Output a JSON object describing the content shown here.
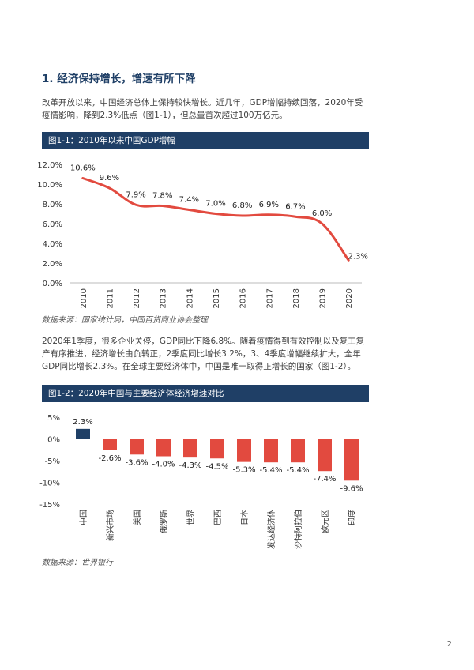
{
  "section": {
    "heading": "1. 经济保持增长，增速有所下降",
    "paragraph1_line1": "改革开放以来，中国经济总体上保持较快增长。近几年，GDP增幅持续回落，2020年受",
    "paragraph1_line2": "疫情影响，降到2.3%低点（图1-1），但总量首次超过100万亿元。",
    "paragraph2_line1": "2020年1季度，很多企业关停，GDP同比下降6.8%。随着疫情得到有效控制以及复工复",
    "paragraph2_line2": "产有序推进，经济增长由负转正，2季度同比增长3.2%，3、4季度增幅继续扩大，全年",
    "paragraph2_line3": "GDP同比增长2.3%。在全球主要经济体中，中国是唯一取得正增长的国家（图1-2）。"
  },
  "figure1": {
    "title": "图1-1：2010年以来中国GDP增幅",
    "source": "数据来源：国家统计局，中国百货商业协会整理"
  },
  "figure2": {
    "title": "图1-2：2020年中国与主要经济体经济增速对比",
    "source": "数据来源：世界银行"
  },
  "page_number": "2",
  "chart_data": [
    {
      "type": "line",
      "title": "图1-1：2010年以来中国GDP增幅",
      "x": [
        "2010",
        "2011",
        "2012",
        "2013",
        "2014",
        "2015",
        "2016",
        "2017",
        "2018",
        "2019",
        "2020"
      ],
      "series": [
        {
          "values": [
            10.6,
            9.6,
            7.9,
            7.8,
            7.4,
            7.0,
            6.8,
            6.9,
            6.7,
            6.0,
            2.3
          ],
          "labels": [
            "10.6%",
            "9.6%",
            "7.9%",
            "7.8%",
            "7.4%",
            "7.0%",
            "6.8%",
            "6.9%",
            "6.7%",
            "6.0%",
            "2.3%"
          ],
          "color": "#e24a3f"
        }
      ],
      "y_ticks": [
        "0.0%",
        "2.0%",
        "4.0%",
        "6.0%",
        "8.0%",
        "10.0%",
        "12.0%"
      ],
      "ylim": [
        0,
        12
      ],
      "grid": false,
      "smooth": true
    },
    {
      "type": "bar",
      "title": "图1-2：2020年中国与主要经济体经济增速对比",
      "categories": [
        "中国",
        "新兴市场",
        "美国",
        "俄罗斯",
        "世界",
        "巴西",
        "日本",
        "发达经济体",
        "沙特阿拉伯",
        "欧元区",
        "印度"
      ],
      "values": [
        2.3,
        -2.6,
        -3.6,
        -4.0,
        -4.3,
        -4.5,
        -5.3,
        -5.4,
        -5.4,
        -7.4,
        -9.6
      ],
      "labels": [
        "2.3%",
        "-2.6%",
        "-3.6%",
        "-4.0%",
        "-4.3%",
        "-4.5%",
        "-5.3%",
        "-5.4%",
        "-5.4%",
        "-7.4%",
        "-9.6%"
      ],
      "colors": {
        "positive": "#1f3f66",
        "negative": "#e24a3f"
      },
      "y_ticks": [
        "5%",
        "0%",
        "-5%",
        "-10%",
        "-15%"
      ],
      "ylim": [
        -15,
        5
      ],
      "grid": false
    }
  ]
}
